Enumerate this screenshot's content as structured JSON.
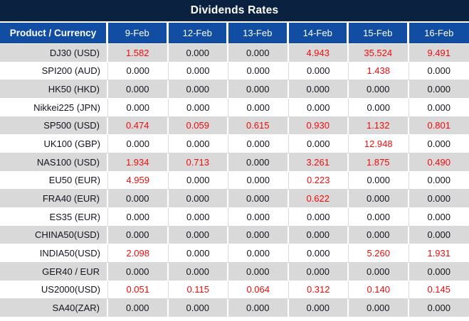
{
  "title_bar": {
    "title": "Dividends Rates"
  },
  "colors": {
    "title_bar_bg": "#0b2140",
    "header_bg": "#114ea3",
    "row_alt_bg": "#d9d9d9",
    "row_bg": "#ffffff",
    "value_red": "#f40b0b",
    "text_dark": "#14141e",
    "header_text": "#ffffff"
  },
  "table": {
    "product_column_header": "Product / Currency",
    "date_column_headers": [
      "9-Feb",
      "12-Feb",
      "13-Feb",
      "14-Feb",
      "15-Feb",
      "16-Feb"
    ],
    "rows": [
      {
        "product": "DJ30 (USD)",
        "values": [
          "1.582",
          "0.000",
          "0.000",
          "4.943",
          "35.524",
          "9.491"
        ],
        "red": [
          true,
          false,
          false,
          true,
          true,
          true
        ]
      },
      {
        "product": "SPI200 (AUD)",
        "values": [
          "0.000",
          "0.000",
          "0.000",
          "0.000",
          "1.438",
          "0.000"
        ],
        "red": [
          false,
          false,
          false,
          false,
          true,
          false
        ]
      },
      {
        "product": "HK50 (HKD)",
        "values": [
          "0.000",
          "0.000",
          "0.000",
          "0.000",
          "0.000",
          "0.000"
        ],
        "red": [
          false,
          false,
          false,
          false,
          false,
          false
        ]
      },
      {
        "product": "Nikkei225 (JPN)",
        "values": [
          "0.000",
          "0.000",
          "0.000",
          "0.000",
          "0.000",
          "0.000"
        ],
        "red": [
          false,
          false,
          false,
          false,
          false,
          false
        ]
      },
      {
        "product": "SP500 (USD)",
        "values": [
          "0.474",
          "0.059",
          "0.615",
          "0.930",
          "1.132",
          "0.801"
        ],
        "red": [
          true,
          true,
          true,
          true,
          true,
          true
        ]
      },
      {
        "product": "UK100 (GBP)",
        "values": [
          "0.000",
          "0.000",
          "0.000",
          "0.000",
          "12.948",
          "0.000"
        ],
        "red": [
          false,
          false,
          false,
          false,
          true,
          false
        ]
      },
      {
        "product": "NAS100 (USD)",
        "values": [
          "1.934",
          "0.713",
          "0.000",
          "3.261",
          "1.875",
          "0.490"
        ],
        "red": [
          true,
          true,
          false,
          true,
          true,
          true
        ]
      },
      {
        "product": "EU50 (EUR)",
        "values": [
          "4.959",
          "0.000",
          "0.000",
          "0.223",
          "0.000",
          "0.000"
        ],
        "red": [
          true,
          false,
          false,
          true,
          false,
          false
        ]
      },
      {
        "product": "FRA40 (EUR)",
        "values": [
          "0.000",
          "0.000",
          "0.000",
          "0.622",
          "0.000",
          "0.000"
        ],
        "red": [
          false,
          false,
          false,
          true,
          false,
          false
        ]
      },
      {
        "product": "ES35 (EUR)",
        "values": [
          "0.000",
          "0.000",
          "0.000",
          "0.000",
          "0.000",
          "0.000"
        ],
        "red": [
          false,
          false,
          false,
          false,
          false,
          false
        ]
      },
      {
        "product": "CHINA50(USD)",
        "values": [
          "0.000",
          "0.000",
          "0.000",
          "0.000",
          "0.000",
          "0.000"
        ],
        "red": [
          false,
          false,
          false,
          false,
          false,
          false
        ]
      },
      {
        "product": "INDIA50(USD)",
        "values": [
          "2.098",
          "0.000",
          "0.000",
          "0.000",
          "5.260",
          "1.931"
        ],
        "red": [
          true,
          false,
          false,
          false,
          true,
          true
        ]
      },
      {
        "product": "GER40 / EUR",
        "values": [
          "0.000",
          "0.000",
          "0.000",
          "0.000",
          "0.000",
          "0.000"
        ],
        "red": [
          false,
          false,
          false,
          false,
          false,
          false
        ]
      },
      {
        "product": "US2000(USD)",
        "values": [
          "0.051",
          "0.115",
          "0.064",
          "0.312",
          "0.140",
          "0.145"
        ],
        "red": [
          true,
          true,
          true,
          true,
          true,
          true
        ]
      },
      {
        "product": "SA40(ZAR)",
        "values": [
          "0.000",
          "0.000",
          "0.000",
          "0.000",
          "0.000",
          "0.000"
        ],
        "red": [
          false,
          false,
          false,
          false,
          false,
          false
        ]
      }
    ]
  }
}
